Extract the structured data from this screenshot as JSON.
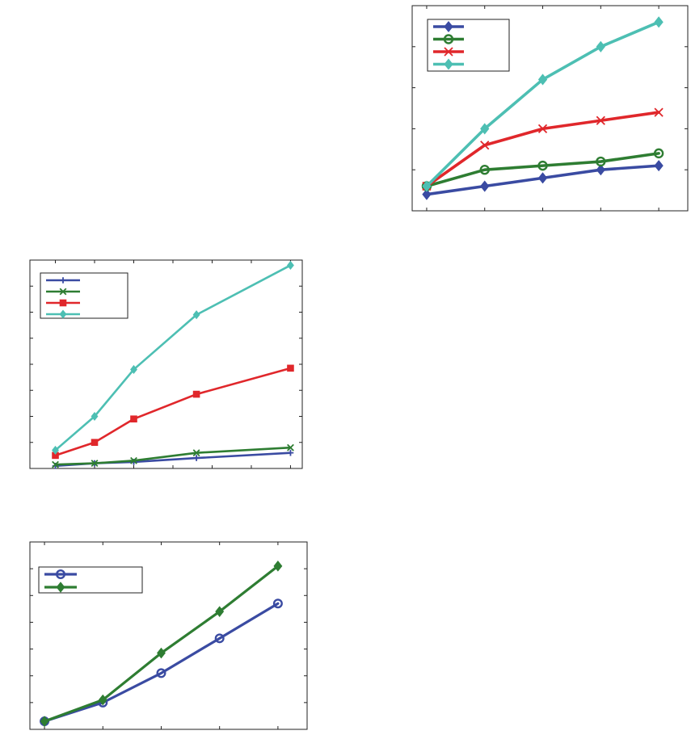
{
  "chart_data": [
    {
      "type": "line",
      "title": "",
      "xlabel": "",
      "ylabel": "",
      "x": [
        1,
        2,
        3,
        4,
        5
      ],
      "xlim": [
        0.75,
        5.5
      ],
      "ylim": [
        0,
        5
      ],
      "grid": false,
      "legend": "top-left",
      "series": [
        {
          "values": [
            0.4,
            0.6,
            0.8,
            1.0,
            1.1
          ],
          "color": "#3a4ba2",
          "marker": "diamond"
        },
        {
          "values": [
            0.6,
            1.0,
            1.1,
            1.2,
            1.4
          ],
          "color": "#2e7d32",
          "marker": "circle"
        },
        {
          "values": [
            0.6,
            1.6,
            2.0,
            2.2,
            2.4
          ],
          "color": "#e0272b",
          "marker": "x"
        },
        {
          "values": [
            0.6,
            2.0,
            3.2,
            4.0,
            4.6
          ],
          "color": "#4dbfb3",
          "marker": "diamond"
        }
      ]
    },
    {
      "type": "line",
      "title": "",
      "xlabel": "",
      "ylabel": "",
      "x": [
        1,
        2,
        3,
        4.6,
        7
      ],
      "xlim": [
        0.35,
        7.3
      ],
      "ylim": [
        0,
        8
      ],
      "grid": false,
      "legend": "top-left",
      "series": [
        {
          "values": [
            0.1,
            0.2,
            0.25,
            0.4,
            0.6
          ],
          "color": "#3a4ba2",
          "marker": "plus"
        },
        {
          "values": [
            0.15,
            0.2,
            0.3,
            0.6,
            0.8
          ],
          "color": "#2e7d32",
          "marker": "x"
        },
        {
          "values": [
            0.5,
            1.0,
            1.9,
            2.85,
            3.85
          ],
          "color": "#e0272b",
          "marker": "square"
        },
        {
          "values": [
            0.7,
            2.0,
            3.8,
            5.9,
            7.8
          ],
          "color": "#4dbfb3",
          "marker": "diamond"
        }
      ]
    },
    {
      "type": "line",
      "title": "",
      "xlabel": "",
      "ylabel": "",
      "x": [
        1,
        2,
        3,
        4,
        5
      ],
      "xlim": [
        0.75,
        5.5
      ],
      "ylim": [
        0,
        7
      ],
      "grid": false,
      "legend": "top-left",
      "series": [
        {
          "values": [
            0.3,
            1.0,
            2.1,
            3.4,
            4.7
          ],
          "color": "#3a4ba2",
          "marker": "circle"
        },
        {
          "values": [
            0.3,
            1.1,
            2.85,
            4.4,
            6.1
          ],
          "color": "#2e7d32",
          "marker": "diamond"
        }
      ]
    }
  ]
}
